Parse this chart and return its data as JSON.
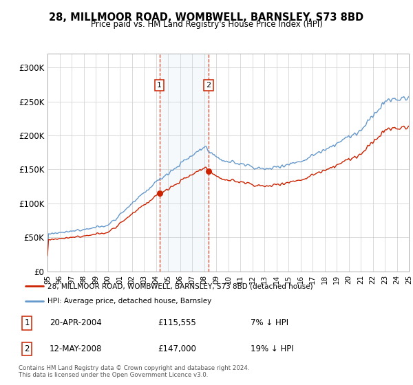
{
  "title": "28, MILLMOOR ROAD, WOMBWELL, BARNSLEY, S73 8BD",
  "subtitle": "Price paid vs. HM Land Registry's House Price Index (HPI)",
  "hpi_color": "#6699cc",
  "price_color": "#cc2200",
  "sale1_date": "20-APR-2004",
  "sale1_price": 115555,
  "sale1_label": "7% ↓ HPI",
  "sale1_year": 2004.3,
  "sale2_date": "12-MAY-2008",
  "sale2_price": 147000,
  "sale2_label": "19% ↓ HPI",
  "sale2_year": 2008.37,
  "legend_line1": "28, MILLMOOR ROAD, WOMBWELL, BARNSLEY, S73 8BD (detached house)",
  "legend_line2": "HPI: Average price, detached house, Barnsley",
  "footer": "Contains HM Land Registry data © Crown copyright and database right 2024.\nThis data is licensed under the Open Government Licence v3.0.",
  "ylim": [
    0,
    320000
  ],
  "yticks": [
    0,
    50000,
    100000,
    150000,
    200000,
    250000,
    300000
  ],
  "ytick_labels": [
    "£0",
    "£50K",
    "£100K",
    "£150K",
    "£200K",
    "£250K",
    "£300K"
  ],
  "xstart_year": 1995,
  "xend_year": 2025
}
